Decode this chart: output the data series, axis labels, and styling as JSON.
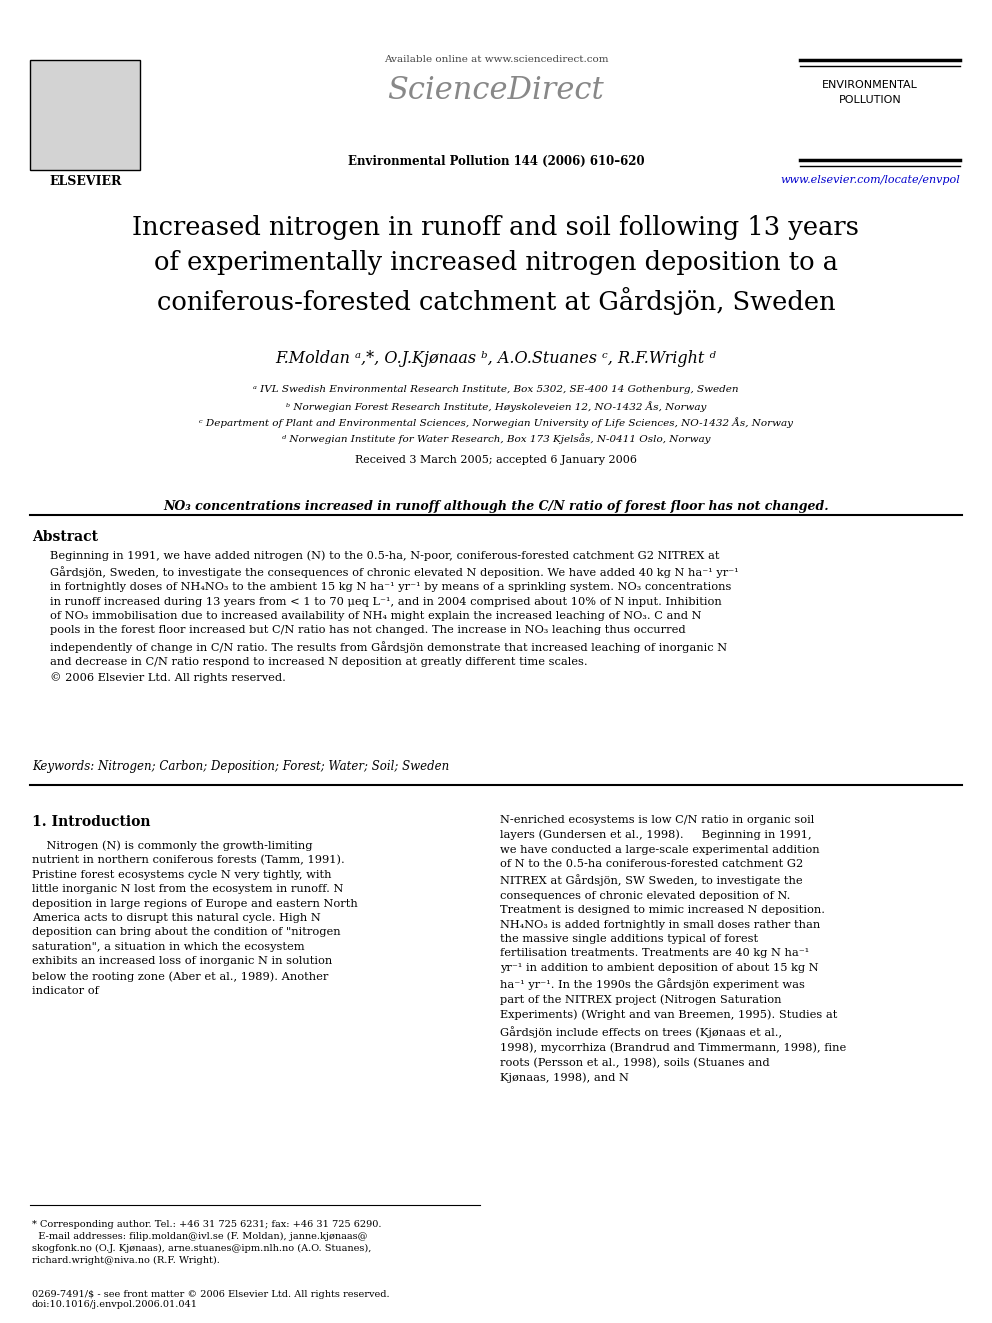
{
  "bg_color": "#ffffff",
  "header": {
    "available_online": "Available online at www.sciencedirect.com",
    "journal_ref": "Environmental Pollution 144 (2006) 610–620",
    "journal_name_line1": "ENVIRONMENTAL",
    "journal_name_line2": "POLLUTION",
    "url": "www.elsevier.com/locate/envpol",
    "url_color": "#0000cc"
  },
  "title": "Increased nitrogen in runoff and soil following 13 years\nof experimentally increased nitrogen deposition to a\nconiferous-forested catchment at Gårdsjön, Sweden",
  "authors": "F.Moldan ᵃ,*, O.J.Kjønaas ᵇ, A.O.Stuanes ᶜ, R.F.Wright ᵈ",
  "affiliations": [
    "ᵃ IVL Swedish Environmental Research Institute, Box 5302, SE-400 14 Gothenburg, Sweden",
    "ᵇ Norwegian Forest Research Institute, Høyskoleveien 12, NO-1432 Ås, Norway",
    "ᶜ Department of Plant and Environmental Sciences, Norwegian University of Life Sciences, NO-1432 Ås, Norway",
    "ᵈ Norwegian Institute for Water Research, Box 173 Kjelsås, N-0411 Oslo, Norway"
  ],
  "received": "Received 3 March 2005; accepted 6 January 2006",
  "highlight": "NO₃ concentrations increased in runoff although the C/N ratio of forest floor has not changed.",
  "abstract_title": "Abstract",
  "abstract_text": "Beginning in 1991, we have added nitrogen (N) to the 0.5-ha, N-poor, coniferous-forested catchment G2 NITREX at Gårdsjön, Sweden, to investigate the consequences of chronic elevated N deposition. We have added 40 kg N ha⁻¹ yr⁻¹ in fortnightly doses of NH₄NO₃ to the ambient 15 kg N ha⁻¹ yr⁻¹ by means of a sprinkling system. NO₃ concentrations in runoff increased during 13 years from < 1 to 70 μeq L⁻¹, and in 2004 comprised about 10% of N input. Inhibition of NO₃ immobilisation due to increased availability of NH₄ might explain the increased leaching of NO₃. C and N pools in the forest floor increased but C/N ratio has not changed. The increase in NO₃ leaching thus occurred independently of change in C/N ratio. The results from Gårdsjön demonstrate that increased leaching of inorganic N and decrease in C/N ratio respond to increased N deposition at greatly different time scales.\n© 2006 Elsevier Ltd. All rights reserved.",
  "keywords": "Keywords: Nitrogen; Carbon; Deposition; Forest; Water; Soil; Sweden",
  "section1_left": "1. Introduction",
  "section1_left_text": "    Nitrogen (N) is commonly the growth-limiting nutrient in northern coniferous forests (Tamm, 1991). Pristine forest ecosystems cycle N very tightly, with little inorganic N lost from the ecosystem in runoff. N deposition in large regions of Europe and eastern North America acts to disrupt this natural cycle. High N deposition can bring about the condition of \"nitrogen saturation\", a situation in which the ecosystem exhibits an increased loss of inorganic N in solution below the rooting zone (Aber et al., 1989). Another indicator of",
  "section1_right_text": "N-enriched ecosystems is low C/N ratio in organic soil layers (Gundersen et al., 1998).\n    Beginning in 1991, we have conducted a large-scale experimental addition of N to the 0.5-ha coniferous-forested catchment G2 NITREX at Gårdsjön, SW Sweden, to investigate the consequences of chronic elevated deposition of N. Treatment is designed to mimic increased N deposition. NH₄NO₃ is added fortnightly in small doses rather than the massive single additions typical of forest fertilisation treatments. Treatments are 40 kg N ha⁻¹ yr⁻¹ in addition to ambient deposition of about 15 kg N ha⁻¹ yr⁻¹. In the 1990s the Gårdsjön experiment was part of the NITREX project (Nitrogen Saturation Experiments) (Wright and van Breemen, 1995). Studies at Gårdsjön include effects on trees (Kjønaas et al., 1998), mycorrhiza (Brandrud and Timmermann, 1998), fine roots (Persson et al., 1998), soils (Stuanes and Kjønaas, 1998), and N",
  "footnote_left": "* Corresponding author. Tel.: +46 31 725 6231; fax: +46 31 725 6290.\n  E-mail addresses: filip.moldan@ivl.se (F. Moldan), janne.kjønaas@\nskogfonk.no (O.J. Kjønaas), arne.stuanes@ipm.nlh.no (A.O. Stuanes),\nrichard.wright@niva.no (R.F. Wright).",
  "footnote_bottom": "0269-7491/$ - see front matter © 2006 Elsevier Ltd. All rights reserved.\ndoi:10.1016/j.envpol.2006.01.041"
}
